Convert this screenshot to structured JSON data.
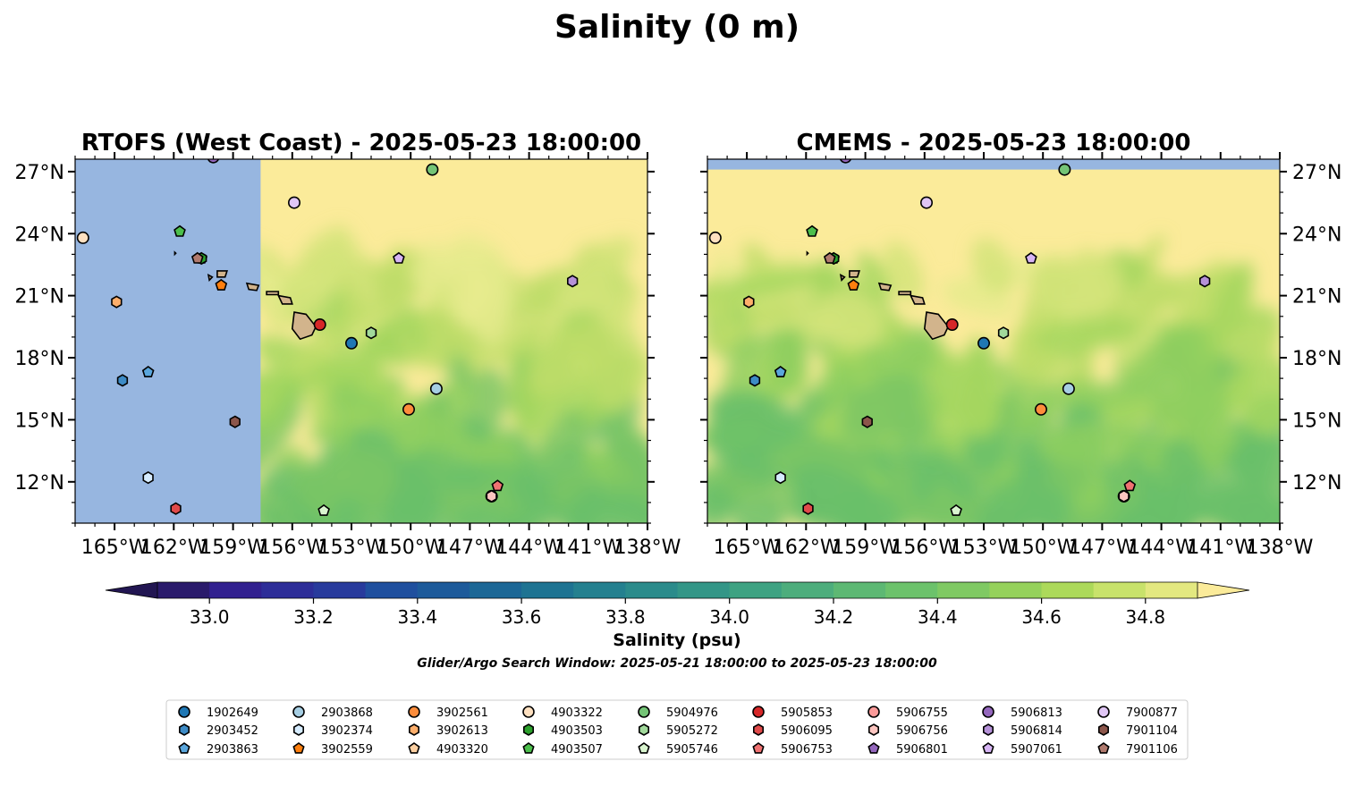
{
  "figure": {
    "suptitle": "Salinity (0 m)",
    "window_text": "Glider/Argo Search Window: 2025-05-21 18:00:00 to 2025-05-23 18:00:00"
  },
  "chart_data": {
    "type": "heatmap",
    "title": "Salinity (0 m)",
    "x_ticks": [
      -165,
      -162,
      -159,
      -156,
      -153,
      -150,
      -147,
      -144,
      -141,
      -138
    ],
    "x_tick_labels": [
      "165°W",
      "162°W",
      "159°W",
      "156°W",
      "153°W",
      "150°W",
      "147°W",
      "144°W",
      "141°W",
      "138°W"
    ],
    "y_ticks": [
      12,
      15,
      18,
      21,
      24,
      27
    ],
    "y_tick_labels": [
      "12°N",
      "15°N",
      "18°N",
      "21°N",
      "24°N",
      "27°N"
    ],
    "xlim": [
      -167,
      -138
    ],
    "ylim": [
      10,
      27.6
    ],
    "panels": [
      {
        "title": "RTOFS (West Coast) - 2025-05-23 18:00:00",
        "model": "RTOFS",
        "no_data_west_of_lon": -157.6,
        "ytick_side": "left"
      },
      {
        "title": "CMEMS - 2025-05-23 18:00:00",
        "model": "CMEMS",
        "no_data_north_of_lat": 27.1,
        "ytick_side": "right"
      }
    ],
    "colorbar": {
      "label": "Salinity (psu)",
      "vmin": 32.9,
      "vmax": 34.9,
      "step": 0.1,
      "extend": "both",
      "ticks": [
        33.0,
        33.2,
        33.4,
        33.6,
        33.8,
        34.0,
        34.2,
        34.4,
        34.6,
        34.8
      ],
      "tick_labels": [
        "33.0",
        "33.2",
        "33.4",
        "33.6",
        "33.8",
        "34.0",
        "34.2",
        "34.4",
        "34.6",
        "34.8"
      ],
      "colors": [
        "#2a1a6b",
        "#31208f",
        "#2d2d98",
        "#283a9c",
        "#1f4f9e",
        "#1d5a9a",
        "#1c6796",
        "#1e7392",
        "#24808f",
        "#2b8b8b",
        "#339687",
        "#3ea282",
        "#4dad7c",
        "#5db873",
        "#6cc26b",
        "#7fc963",
        "#95d15b",
        "#acd95a",
        "#c8e26b",
        "#e3e880"
      ],
      "under_color": "#221652",
      "over_color": "#fbeb9a"
    },
    "no_data_color": "#97b6e0",
    "land_color": "#d2b48c",
    "floats": [
      {
        "id": "1902649",
        "marker": "circle",
        "color": "#1f77b4",
        "lon": -153.0,
        "lat": 18.7
      },
      {
        "id": "2903452",
        "marker": "hexagon",
        "color": "#3d8bc6",
        "lon": -164.6,
        "lat": 16.9
      },
      {
        "id": "2903863",
        "marker": "pentagon",
        "color": "#5aa6dc",
        "lon": -163.3,
        "lat": 17.3
      },
      {
        "id": "2903868",
        "marker": "circle",
        "color": "#a6cee3",
        "lon": -148.7,
        "lat": 16.5
      },
      {
        "id": "3902374",
        "marker": "hexagon",
        "color": "#d6ecff",
        "lon": -163.3,
        "lat": 12.2
      },
      {
        "id": "3902559",
        "marker": "pentagon",
        "color": "#ff7f0e",
        "lon": -159.6,
        "lat": 21.5
      },
      {
        "id": "3902561",
        "marker": "circle",
        "color": "#fd8d3c",
        "lon": -150.1,
        "lat": 15.5
      },
      {
        "id": "3902613",
        "marker": "hexagon",
        "color": "#fdae6b",
        "lon": -164.9,
        "lat": 20.7
      },
      {
        "id": "4903320",
        "marker": "pentagon",
        "color": "#fdd0a2",
        "lon": -160.6,
        "lat": 22.8
      },
      {
        "id": "4903322",
        "marker": "circle",
        "color": "#fee0c0",
        "lon": -166.6,
        "lat": 23.8
      },
      {
        "id": "4903503",
        "marker": "hexagon",
        "color": "#2ca02c",
        "lon": -160.6,
        "lat": 22.8
      },
      {
        "id": "4903507",
        "marker": "pentagon",
        "color": "#4cbf4c",
        "lon": -161.7,
        "lat": 24.1
      },
      {
        "id": "5904976",
        "marker": "circle",
        "color": "#74c476",
        "lon": -148.9,
        "lat": 27.1
      },
      {
        "id": "5905272",
        "marker": "hexagon",
        "color": "#a1d99b",
        "lon": -152.0,
        "lat": 19.2
      },
      {
        "id": "5905746",
        "marker": "pentagon",
        "color": "#d9f5cf",
        "lon": -154.4,
        "lat": 10.6
      },
      {
        "id": "5905853",
        "marker": "circle",
        "color": "#d62728",
        "lon": -154.6,
        "lat": 19.6
      },
      {
        "id": "5906095",
        "marker": "hexagon",
        "color": "#e04a4a",
        "lon": -161.9,
        "lat": 10.7
      },
      {
        "id": "5906753",
        "marker": "pentagon",
        "color": "#f07272",
        "lon": -145.6,
        "lat": 11.8
      },
      {
        "id": "5906755",
        "marker": "circle",
        "color": "#fb9a99",
        "lon": -145.9,
        "lat": 11.3
      },
      {
        "id": "5906756",
        "marker": "hexagon",
        "color": "#fcc5c0",
        "lon": -145.9,
        "lat": 11.3
      },
      {
        "id": "5906801",
        "marker": "pentagon",
        "color": "#9467bd",
        "lon": -160.0,
        "lat": 27.7
      },
      {
        "id": "5906813",
        "marker": "circle",
        "color": "#9467bd",
        "lon": -160.0,
        "lat": 27.7
      },
      {
        "id": "5906814",
        "marker": "hexagon",
        "color": "#b591d8",
        "lon": -141.8,
        "lat": 21.7
      },
      {
        "id": "5907061",
        "marker": "pentagon",
        "color": "#d7b5f5",
        "lon": -150.6,
        "lat": 22.8
      },
      {
        "id": "7900877",
        "marker": "circle",
        "color": "#e0c6f5",
        "lon": -155.9,
        "lat": 25.5
      },
      {
        "id": "7901104",
        "marker": "hexagon",
        "color": "#8c564b",
        "lon": -158.9,
        "lat": 14.9
      },
      {
        "id": "7901106",
        "marker": "pentagon",
        "color": "#b07a6e",
        "lon": -160.8,
        "lat": 22.8
      }
    ],
    "legend": {
      "placement": "lower-center",
      "columns": [
        [
          "1902649",
          "2903452",
          "2903863"
        ],
        [
          "2903868",
          "3902374",
          "3902559"
        ],
        [
          "3902561",
          "3902613",
          "4903320"
        ],
        [
          "4903322",
          "4903503",
          "4903507"
        ],
        [
          "5904976",
          "5905272",
          "5905746"
        ],
        [
          "5905853",
          "5906095",
          "5906753"
        ],
        [
          "5906755",
          "5906756",
          "5906801"
        ],
        [
          "5906813",
          "5906814",
          "5907061"
        ],
        [
          "7900877",
          "7901104",
          "7901106"
        ]
      ]
    }
  }
}
